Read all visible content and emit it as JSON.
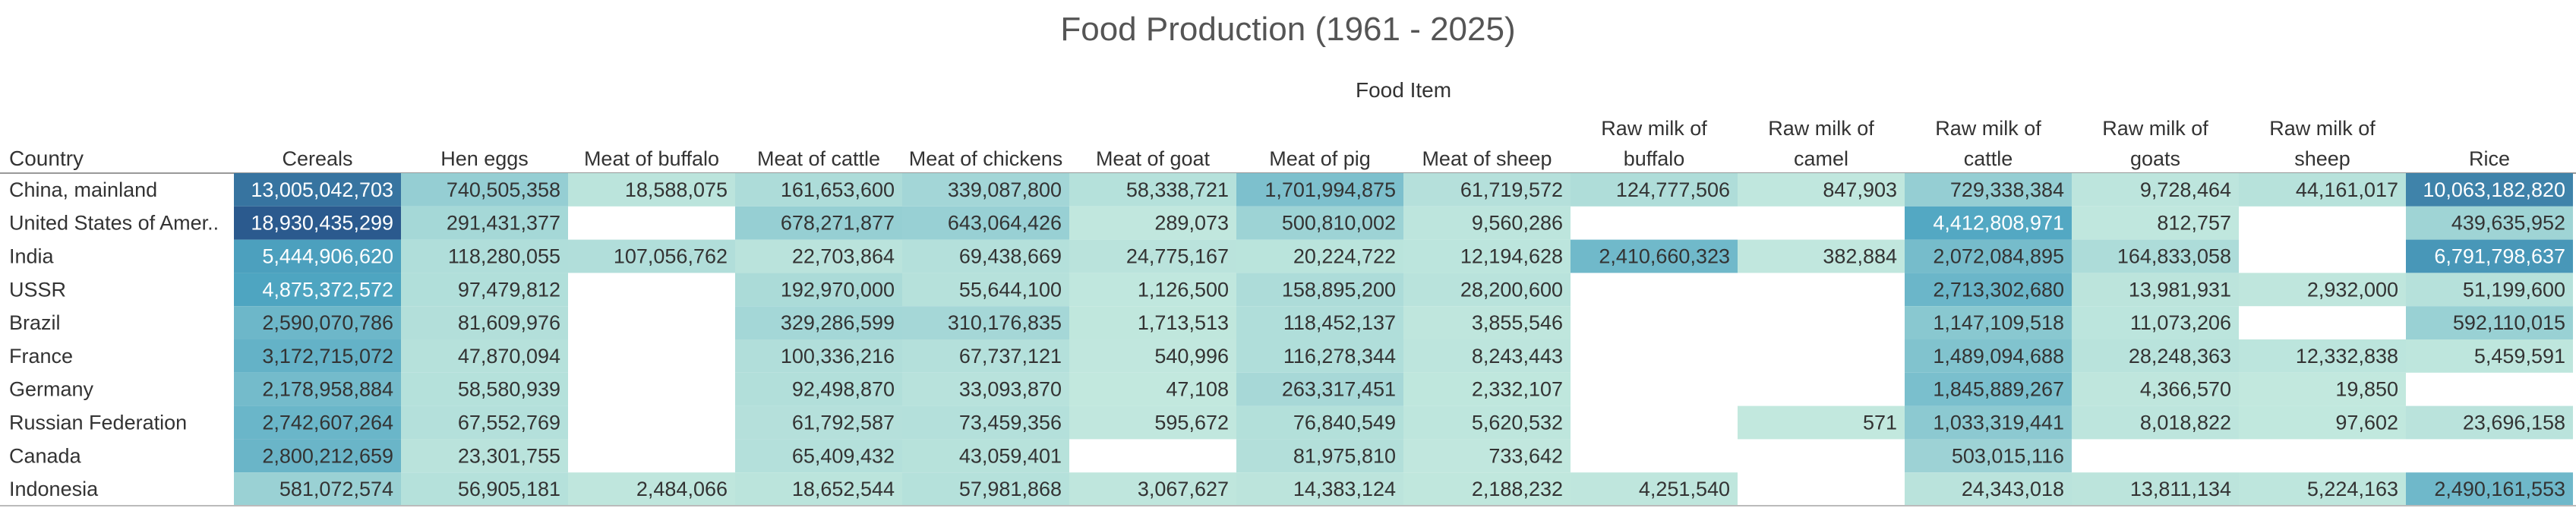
{
  "chart_data": {
    "type": "heatmap",
    "title": "Food Production (1961 - 2025)",
    "column_group_label": "Food Item",
    "row_header": "Country",
    "columns": [
      "Cereals",
      "Hen eggs",
      "Meat of buffalo",
      "Meat of cattle",
      "Meat of chickens",
      "Meat of goat",
      "Meat of pig",
      "Meat of sheep",
      "Raw milk of buffalo",
      "Raw milk of camel",
      "Raw milk of cattle",
      "Raw milk of goats",
      "Raw milk of sheep",
      "Rice"
    ],
    "columns_display": [
      [
        "Cereals"
      ],
      [
        "Hen eggs"
      ],
      [
        "Meat of buffalo"
      ],
      [
        "Meat of cattle"
      ],
      [
        "Meat of chickens"
      ],
      [
        "Meat of goat"
      ],
      [
        "Meat of pig"
      ],
      [
        "Meat of sheep"
      ],
      [
        "Raw milk of",
        "buffalo"
      ],
      [
        "Raw milk of",
        "camel"
      ],
      [
        "Raw milk of",
        "cattle"
      ],
      [
        "Raw milk of",
        "goats"
      ],
      [
        "Raw milk of",
        "sheep"
      ],
      [
        "Rice"
      ]
    ],
    "rows": [
      "China, mainland",
      "United States of Amer..",
      "India",
      "USSR",
      "Brazil",
      "France",
      "Germany",
      "Russian Federation",
      "Canada",
      "Indonesia"
    ],
    "values": [
      [
        13005042703,
        740505358,
        18588075,
        161653600,
        339087800,
        58338721,
        1701994875,
        61719572,
        124777506,
        847903,
        729338384,
        9728464,
        44161017,
        10063182820
      ],
      [
        18930435299,
        291431377,
        null,
        678271877,
        643064426,
        289073,
        500810002,
        9560286,
        null,
        null,
        4412808971,
        812757,
        null,
        439635952
      ],
      [
        5444906620,
        118280055,
        107056762,
        22703864,
        69438669,
        24775167,
        20224722,
        12194628,
        2410660323,
        382884,
        2072084895,
        164833058,
        null,
        6791798637
      ],
      [
        4875372572,
        97479812,
        null,
        192970000,
        55644100,
        1126500,
        158895200,
        28200600,
        null,
        null,
        2713302680,
        13981931,
        2932000,
        51199600
      ],
      [
        2590070786,
        81609976,
        null,
        329286599,
        310176835,
        1713513,
        118452137,
        3855546,
        null,
        null,
        1147109518,
        11073206,
        null,
        592110015
      ],
      [
        3172715072,
        47870094,
        null,
        100336216,
        67737121,
        540996,
        116278344,
        8243443,
        null,
        null,
        1489094688,
        28248363,
        12332838,
        5459591
      ],
      [
        2178958884,
        58580939,
        null,
        92498870,
        33093870,
        47108,
        263317451,
        2332107,
        null,
        null,
        1845889267,
        4366570,
        19850,
        null
      ],
      [
        2742607264,
        67552769,
        null,
        61792587,
        73459356,
        595672,
        76840549,
        5620532,
        null,
        571,
        1033319441,
        8018822,
        97602,
        23696158
      ],
      [
        2800212659,
        23301755,
        null,
        65409432,
        43059401,
        null,
        81975810,
        733642,
        null,
        null,
        503015116,
        null,
        null,
        null
      ],
      [
        581072574,
        56905181,
        2484066,
        18652544,
        57981868,
        3067627,
        14383124,
        2188232,
        4251540,
        null,
        24343018,
        13811134,
        5224163,
        2490161553
      ]
    ],
    "color_scale": {
      "low": "#c2e8de",
      "mid": "#4fa6c2",
      "high": "#2b5a8e"
    },
    "text_color_dark": "#333333",
    "text_color_light": "#ffffff",
    "grid": false,
    "legend": "none"
  }
}
